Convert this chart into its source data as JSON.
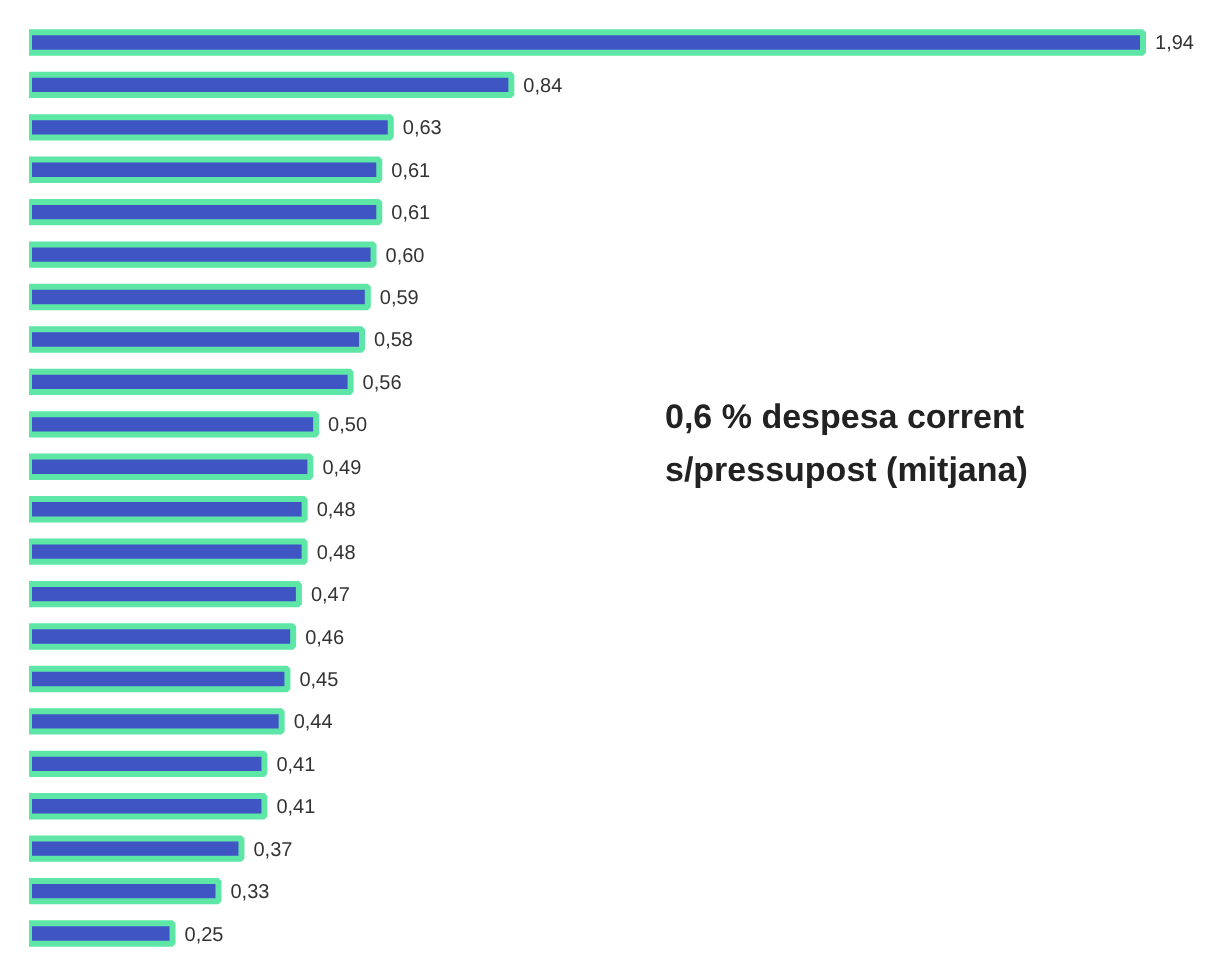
{
  "chart_data": {
    "type": "bar",
    "orientation": "horizontal",
    "categories": [
      null,
      null,
      null,
      null,
      null,
      null,
      null,
      null,
      null,
      null,
      null,
      null,
      null,
      null,
      null,
      null,
      null,
      null,
      null,
      null,
      null,
      null
    ],
    "values": [
      1.94,
      0.84,
      0.63,
      0.61,
      0.61,
      0.6,
      0.59,
      0.58,
      0.56,
      0.5,
      0.49,
      0.48,
      0.48,
      0.47,
      0.46,
      0.45,
      0.44,
      0.41,
      0.41,
      0.37,
      0.33,
      0.25
    ],
    "value_labels": [
      "1,94",
      "0,84",
      "0,63",
      "0,61",
      "0,61",
      "0,60",
      "0,59",
      "0,58",
      "0,56",
      "0,50",
      "0,49",
      "0,48",
      "0,48",
      "0,47",
      "0,46",
      "0,45",
      "0,44",
      "0,41",
      "0,41",
      "0,37",
      "0,33",
      "0,25"
    ],
    "color": "#3f55c4",
    "annotations": [
      "0,6 % despesa corrent\ns/pressupost (mitjana)"
    ],
    "tick_labels": false,
    "grid": false
  }
}
